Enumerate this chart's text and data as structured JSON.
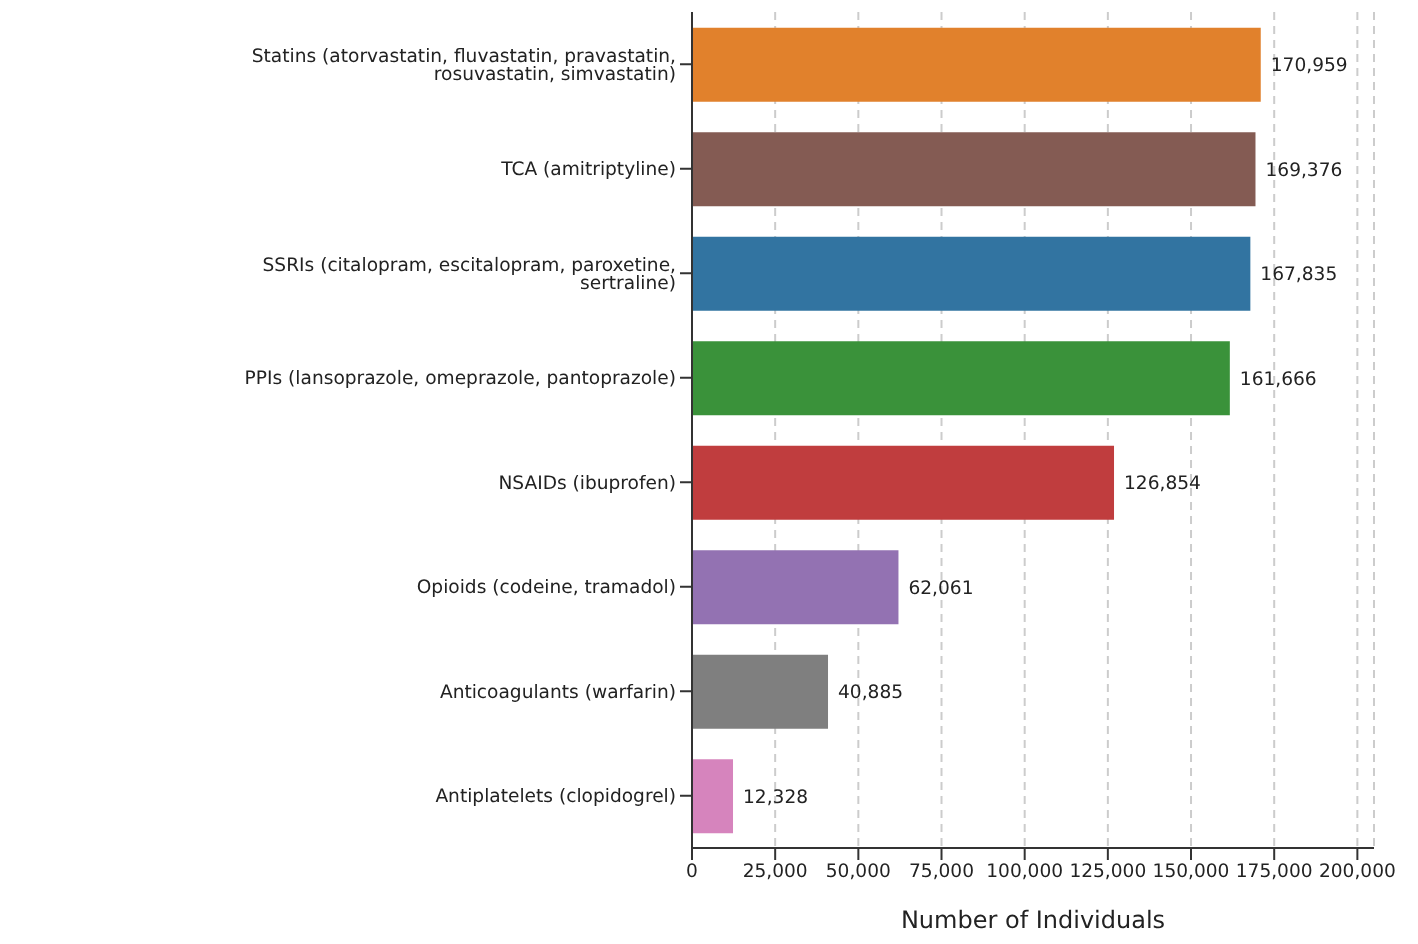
{
  "chart_data": {
    "type": "bar",
    "orientation": "horizontal",
    "xlabel": "Number of Individuals",
    "categories": [
      "Statins (atorvastatin, fluvastatin, pravastatin, rosuvastatin, simvastatin)",
      "TCA (amitriptyline)",
      "SSRIs (citalopram, escitalopram, paroxetine, sertraline)",
      "PPIs (lansoprazole, omeprazole, pantoprazole)",
      "NSAIDs (ibuprofen)",
      "Opioids (codeine, tramadol)",
      "Anticoagulants (warfarin)",
      "Antiplatelets (clopidogrel)"
    ],
    "values": [
      170959,
      169376,
      167835,
      161666,
      126854,
      62061,
      40885,
      12328
    ],
    "colors": [
      "#e1812c",
      "#845b53",
      "#3274a1",
      "#3a923a",
      "#c03d3e",
      "#9372b2",
      "#7f7f7f",
      "#d684bd"
    ],
    "xlim": [
      0,
      205000
    ],
    "xticks": [
      {
        "value": 0,
        "label": "0"
      },
      {
        "value": 25000,
        "label": "25,000"
      },
      {
        "value": 50000,
        "label": "50,000"
      },
      {
        "value": 75000,
        "label": "75,000"
      },
      {
        "value": 100000,
        "label": "100,000"
      },
      {
        "value": 125000,
        "label": "125,000"
      },
      {
        "value": 150000,
        "label": "150,000"
      },
      {
        "value": 175000,
        "label": "175,000"
      },
      {
        "value": 200000,
        "label": "200,000"
      }
    ],
    "value_labels": [
      "170,959",
      "169,376",
      "167,835",
      "161,666",
      "126,854",
      "62,061",
      "40,885",
      "12,328"
    ],
    "grid": "x"
  }
}
